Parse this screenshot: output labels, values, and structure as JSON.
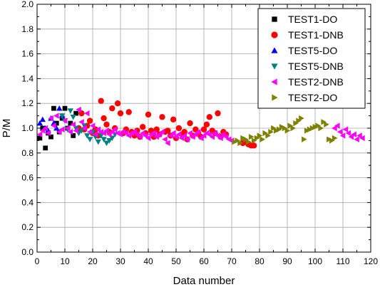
{
  "chart_data": {
    "type": "scatter",
    "title": "",
    "xlabel": "Data number",
    "ylabel": "P/M",
    "xlim": [
      0,
      120
    ],
    "ylim": [
      0.0,
      2.0
    ],
    "xticks": [
      0,
      10,
      20,
      30,
      40,
      50,
      60,
      70,
      80,
      90,
      100,
      110,
      120
    ],
    "xtick_labels": [
      "0",
      "10",
      "20",
      "30",
      "40",
      "50",
      "60",
      "70",
      "80",
      "90",
      "100",
      "110",
      "120"
    ],
    "yticks": [
      0.0,
      0.2,
      0.4,
      0.6,
      0.8,
      1.0,
      1.2,
      1.4,
      1.6,
      1.8,
      2.0
    ],
    "ytick_labels": [
      "0.0",
      "0.2",
      "0.4",
      "0.6",
      "0.8",
      "1.0",
      "1.2",
      "1.4",
      "1.6",
      "1.8",
      "2.0"
    ],
    "grid": true,
    "legend_position": "top-right",
    "series": [
      {
        "name": "TEST1-DO",
        "marker": "square",
        "color": "#000000",
        "x": [
          1,
          2,
          3,
          4,
          5,
          6,
          7,
          8,
          9,
          10,
          11,
          12,
          13,
          14
        ],
        "y": [
          0.92,
          1.0,
          0.84,
          0.96,
          0.93,
          1.16,
          1.04,
          0.97,
          1.08,
          1.16,
          1.0,
          1.04,
          0.94,
          1.12
        ]
      },
      {
        "name": "TEST1-DNB",
        "marker": "circle",
        "color": "#ff0000",
        "x": [
          15,
          16,
          17,
          18,
          19,
          20,
          21,
          22,
          23,
          24,
          25,
          26,
          27,
          28,
          29,
          30,
          31,
          32,
          33,
          34,
          35,
          36,
          37,
          38,
          39,
          40,
          41,
          42,
          43,
          44,
          45,
          46,
          47,
          48,
          49,
          50,
          51,
          52,
          53,
          54,
          55,
          56,
          57,
          58,
          59,
          60,
          61,
          62,
          63,
          64,
          65,
          66,
          67,
          68,
          74,
          75,
          76,
          77,
          78
        ],
        "y": [
          1.0,
          1.12,
          0.99,
          1.02,
          1.06,
          0.96,
          0.99,
          0.94,
          1.22,
          1.08,
          1.03,
          0.97,
          1.16,
          1.0,
          1.2,
          1.12,
          0.96,
          0.99,
          1.13,
          0.97,
          0.94,
          0.98,
          0.93,
          1.01,
          0.96,
          1.11,
          0.98,
          0.93,
          0.99,
          0.95,
          1.09,
          0.97,
          0.98,
          0.94,
          1.07,
          0.92,
          1.0,
          0.95,
          0.97,
          0.91,
          1.04,
          0.94,
          0.99,
          0.96,
          0.93,
          0.99,
          1.03,
          1.09,
          0.98,
          0.96,
          1.12,
          0.93,
          0.97,
          0.95,
          0.88,
          0.89,
          0.87,
          0.86,
          0.86
        ]
      },
      {
        "name": "TEST5-DO",
        "marker": "triangle-up",
        "color": "#0000ff",
        "x": [
          1,
          2,
          3,
          4,
          5,
          6,
          7,
          8,
          9
        ],
        "y": [
          1.04,
          1.07,
          1.0,
          0.98,
          1.08,
          1.04,
          1.0,
          1.16,
          1.1
        ]
      },
      {
        "name": "TEST5-DNB",
        "marker": "triangle-down",
        "color": "#008080",
        "x": [
          9,
          10,
          11,
          12,
          13,
          14,
          15,
          16,
          17,
          18,
          19,
          20,
          21,
          22,
          23,
          24,
          25,
          26,
          27,
          28
        ],
        "y": [
          1.1,
          1.06,
          0.99,
          1.14,
          1.09,
          1.0,
          0.96,
          0.98,
          1.02,
          0.94,
          0.91,
          0.97,
          0.93,
          0.89,
          0.94,
          0.91,
          0.88,
          0.9,
          0.92,
          0.95
        ]
      },
      {
        "name": "TEST2-DNB",
        "marker": "triangle-left",
        "color": "#ff00ff",
        "x": [
          1,
          2,
          3,
          4,
          5,
          6,
          7,
          8,
          9,
          10,
          11,
          12,
          13,
          14,
          15,
          16,
          17,
          18,
          19,
          20,
          21,
          22,
          23,
          24,
          25,
          26,
          27,
          28,
          29,
          30,
          31,
          32,
          33,
          34,
          35,
          36,
          37,
          38,
          39,
          40,
          41,
          42,
          43,
          44,
          45,
          46,
          47,
          48,
          49,
          50,
          51,
          52,
          53,
          54,
          55,
          56,
          57,
          58,
          59,
          60,
          61,
          62,
          63,
          64,
          65,
          66,
          67,
          68,
          69,
          70,
          107,
          108,
          109,
          110,
          111,
          112,
          113,
          114,
          115,
          116,
          117
        ],
        "y": [
          0.95,
          0.98,
          1.0,
          0.96,
          1.08,
          1.02,
          1.1,
          0.97,
          0.99,
          1.06,
          1.0,
          0.97,
          1.03,
          0.98,
          1.15,
          1.05,
          1.0,
          1.12,
          0.97,
          1.02,
          0.95,
          0.99,
          0.97,
          0.96,
          0.98,
          0.95,
          0.97,
          0.99,
          0.96,
          0.95,
          0.97,
          0.96,
          0.94,
          0.96,
          0.97,
          0.95,
          0.93,
          0.96,
          0.94,
          0.92,
          0.95,
          0.96,
          0.93,
          0.95,
          0.97,
          0.91,
          0.88,
          0.94,
          0.96,
          0.93,
          0.95,
          0.92,
          0.94,
          0.91,
          0.96,
          0.93,
          0.95,
          0.97,
          0.92,
          0.94,
          0.96,
          0.95,
          0.93,
          0.96,
          0.94,
          0.92,
          0.95,
          0.93,
          0.91,
          0.9,
          1.0,
          1.02,
          0.97,
          0.94,
          0.99,
          0.96,
          0.93,
          0.95,
          0.91,
          0.94,
          0.92
        ]
      },
      {
        "name": "TEST2-DO",
        "marker": "triangle-right",
        "color": "#808000",
        "x": [
          71,
          72,
          73,
          74,
          75,
          76,
          77,
          78,
          79,
          80,
          81,
          82,
          83,
          84,
          85,
          86,
          87,
          88,
          89,
          90,
          91,
          92,
          93,
          94,
          95,
          96,
          97,
          98,
          99,
          100,
          101,
          102,
          103,
          104,
          105,
          106,
          107
        ],
        "y": [
          0.89,
          0.9,
          0.88,
          0.92,
          0.91,
          0.89,
          0.93,
          0.9,
          0.92,
          0.94,
          0.91,
          0.96,
          0.94,
          0.97,
          1.0,
          0.98,
          0.99,
          1.01,
          1.0,
          0.98,
          1.02,
          1.0,
          1.04,
          1.06,
          1.08,
          0.91,
          0.98,
          0.99,
          1.0,
          1.01,
          1.02,
          1.0,
          1.05,
          1.03,
          0.91,
          0.9,
          0.92
        ]
      }
    ]
  }
}
